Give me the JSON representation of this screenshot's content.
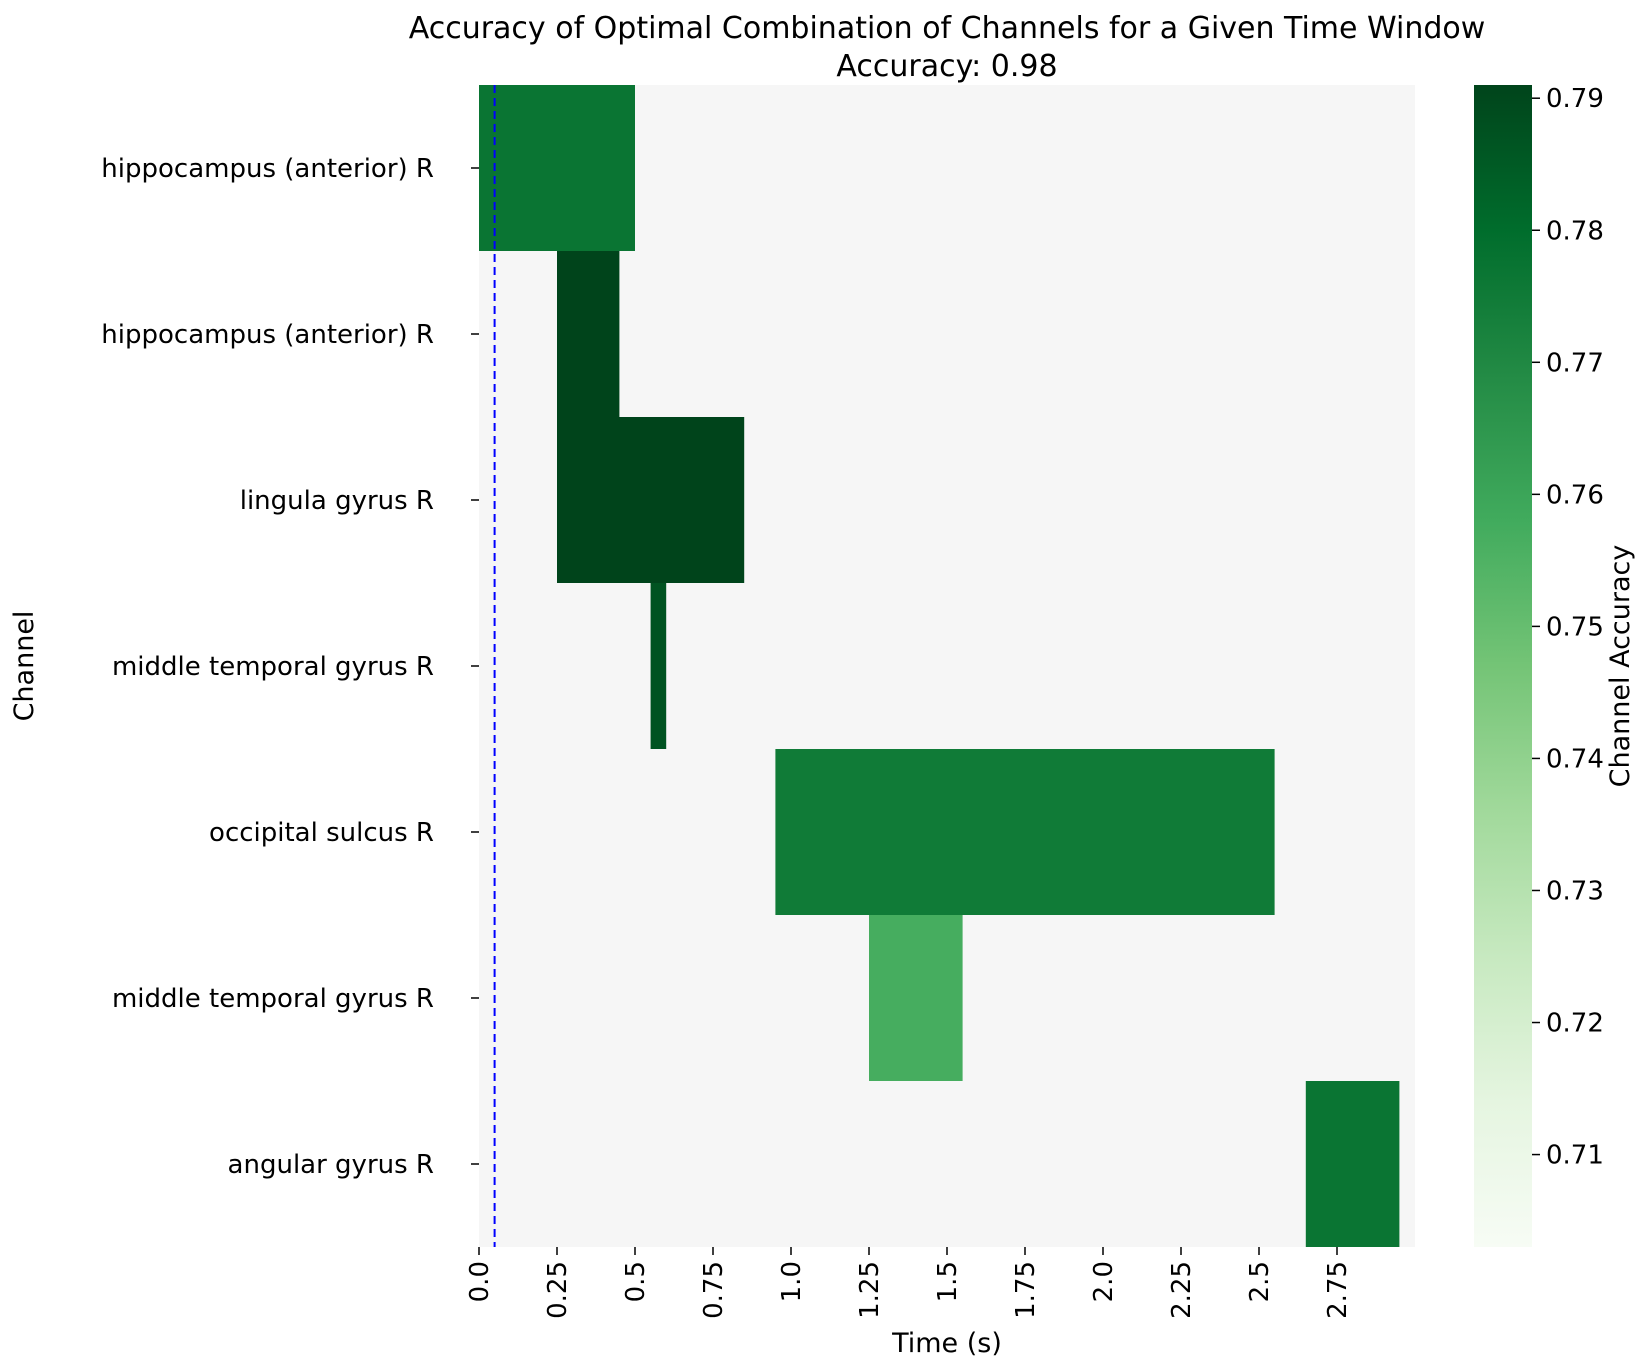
{
  "chart_data": {
    "type": "heatmap",
    "title": "Accuracy of Optimal Combination of Channels for a Given Time Window",
    "subtitle": "Accuracy: 0.98",
    "xlabel": "Time (s)",
    "ylabel": "Channel",
    "xlim": [
      0,
      3.0
    ],
    "x_ticks": [
      "0.0",
      "0.25",
      "0.5",
      "0.75",
      "1.0",
      "1.25",
      "1.5",
      "1.75",
      "2.0",
      "2.25",
      "2.5",
      "2.75"
    ],
    "x_tick_values": [
      0,
      0.25,
      0.5,
      0.75,
      1.0,
      1.25,
      1.5,
      1.75,
      2.0,
      2.25,
      2.5,
      2.75
    ],
    "channels": [
      "hippocampus (anterior) R",
      "hippocampus (anterior) R",
      "lingula gyrus R",
      "middle temporal gyrus R",
      "occipital sulcus R",
      "middle temporal gyrus R",
      "angular gyrus R"
    ],
    "segments": [
      {
        "channel_index": 0,
        "start": 0.0,
        "end": 0.5,
        "accuracy": 0.777
      },
      {
        "channel_index": 1,
        "start": 0.25,
        "end": 0.45,
        "accuracy": 0.791
      },
      {
        "channel_index": 2,
        "start": 0.25,
        "end": 0.85,
        "accuracy": 0.791
      },
      {
        "channel_index": 3,
        "start": 0.55,
        "end": 0.6,
        "accuracy": 0.787
      },
      {
        "channel_index": 4,
        "start": 0.95,
        "end": 2.55,
        "accuracy": 0.775
      },
      {
        "channel_index": 5,
        "start": 1.25,
        "end": 1.55,
        "accuracy": 0.757
      },
      {
        "channel_index": 6,
        "start": 2.65,
        "end": 2.95,
        "accuracy": 0.777
      }
    ],
    "background_accuracy": 0.703,
    "reference_line": {
      "x": 0.05,
      "style": "dashed",
      "color": "#0000ff"
    },
    "colorbar": {
      "label": "Channel Accuracy",
      "colormap": "Greens",
      "range": [
        0.703,
        0.791
      ],
      "ticks": [
        "0.71",
        "0.72",
        "0.73",
        "0.74",
        "0.75",
        "0.76",
        "0.77",
        "0.78",
        "0.79"
      ],
      "tick_values": [
        0.71,
        0.72,
        0.73,
        0.74,
        0.75,
        0.76,
        0.77,
        0.78,
        0.79
      ]
    },
    "grid": false,
    "legend": "none"
  }
}
